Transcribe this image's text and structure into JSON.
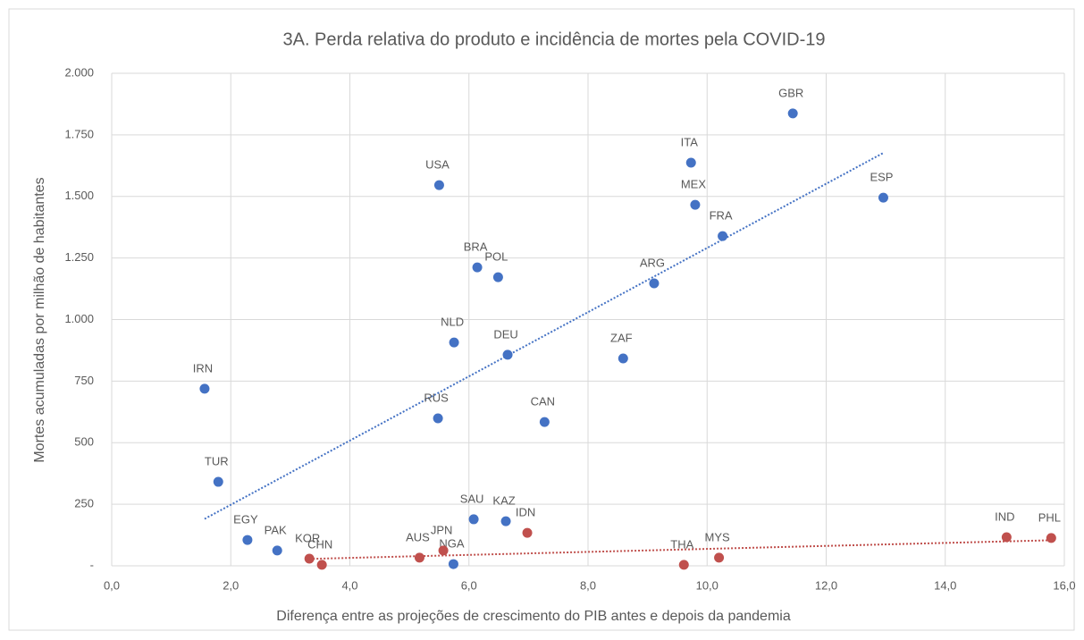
{
  "chart_data": {
    "type": "scatter",
    "title": "3A. Perda relativa do produto e incidência de mortes pela COVID-19",
    "x_label": "Diferença entre as projeções de crescimento do PIB antes e depois da pandemia",
    "y_label": "Mortes acumuladas por milhão de habitantes",
    "xlim": [
      0,
      16
    ],
    "ylim": [
      0,
      2000
    ],
    "xticks": [
      {
        "value": 0,
        "label": "0,0"
      },
      {
        "value": 2,
        "label": "2,0"
      },
      {
        "value": 4,
        "label": "4,0"
      },
      {
        "value": 6,
        "label": "6,0"
      },
      {
        "value": 8,
        "label": "8,0"
      },
      {
        "value": 10,
        "label": "10,0"
      },
      {
        "value": 12,
        "label": "12,0"
      },
      {
        "value": 14,
        "label": "14,0"
      },
      {
        "value": 16,
        "label": "16,0"
      }
    ],
    "yticks": [
      {
        "value": 0,
        "label": "-"
      },
      {
        "value": 250,
        "label": "250"
      },
      {
        "value": 500,
        "label": "500"
      },
      {
        "value": 750,
        "label": "750"
      },
      {
        "value": 1000,
        "label": "1.000"
      },
      {
        "value": 1250,
        "label": "1.250"
      },
      {
        "value": 1500,
        "label": "1.500"
      },
      {
        "value": 1750,
        "label": "1.750"
      },
      {
        "value": 2000,
        "label": "2.000"
      }
    ],
    "grid": true,
    "trendline": true,
    "series": [
      {
        "color": "#4472c4",
        "labels": [
          "IRN",
          "TUR",
          "EGY",
          "PAK",
          "USA",
          "RUS",
          "NLD",
          "NGA",
          "SAU",
          "BRA",
          "POL",
          "DEU",
          "KAZ",
          "CAN",
          "ZAF",
          "ARG",
          "ITA",
          "MEX",
          "FRA",
          "GBR",
          "ESP"
        ],
        "x": [
          1.56,
          1.79,
          2.28,
          2.78,
          5.5,
          5.48,
          5.75,
          5.74,
          6.08,
          6.14,
          6.49,
          6.65,
          6.62,
          7.27,
          8.59,
          9.11,
          9.73,
          9.8,
          10.26,
          11.44,
          12.96
        ],
        "values": [
          719,
          341,
          105,
          62,
          1546,
          599,
          907,
          7,
          189,
          1212,
          1172,
          857,
          181,
          584,
          842,
          1147,
          1637,
          1466,
          1339,
          1837,
          1495
        ]
      },
      {
        "color": "#c0504d",
        "labels": [
          "KOR",
          "CHN",
          "AUS",
          "JPN",
          "IDN",
          "THA",
          "MYS",
          "IND",
          "PHL"
        ],
        "x": [
          3.32,
          3.53,
          5.17,
          5.57,
          6.98,
          9.61,
          10.2,
          15.03,
          15.78
        ],
        "values": [
          29,
          4,
          33,
          62,
          134,
          4,
          33,
          116,
          113
        ]
      }
    ]
  }
}
